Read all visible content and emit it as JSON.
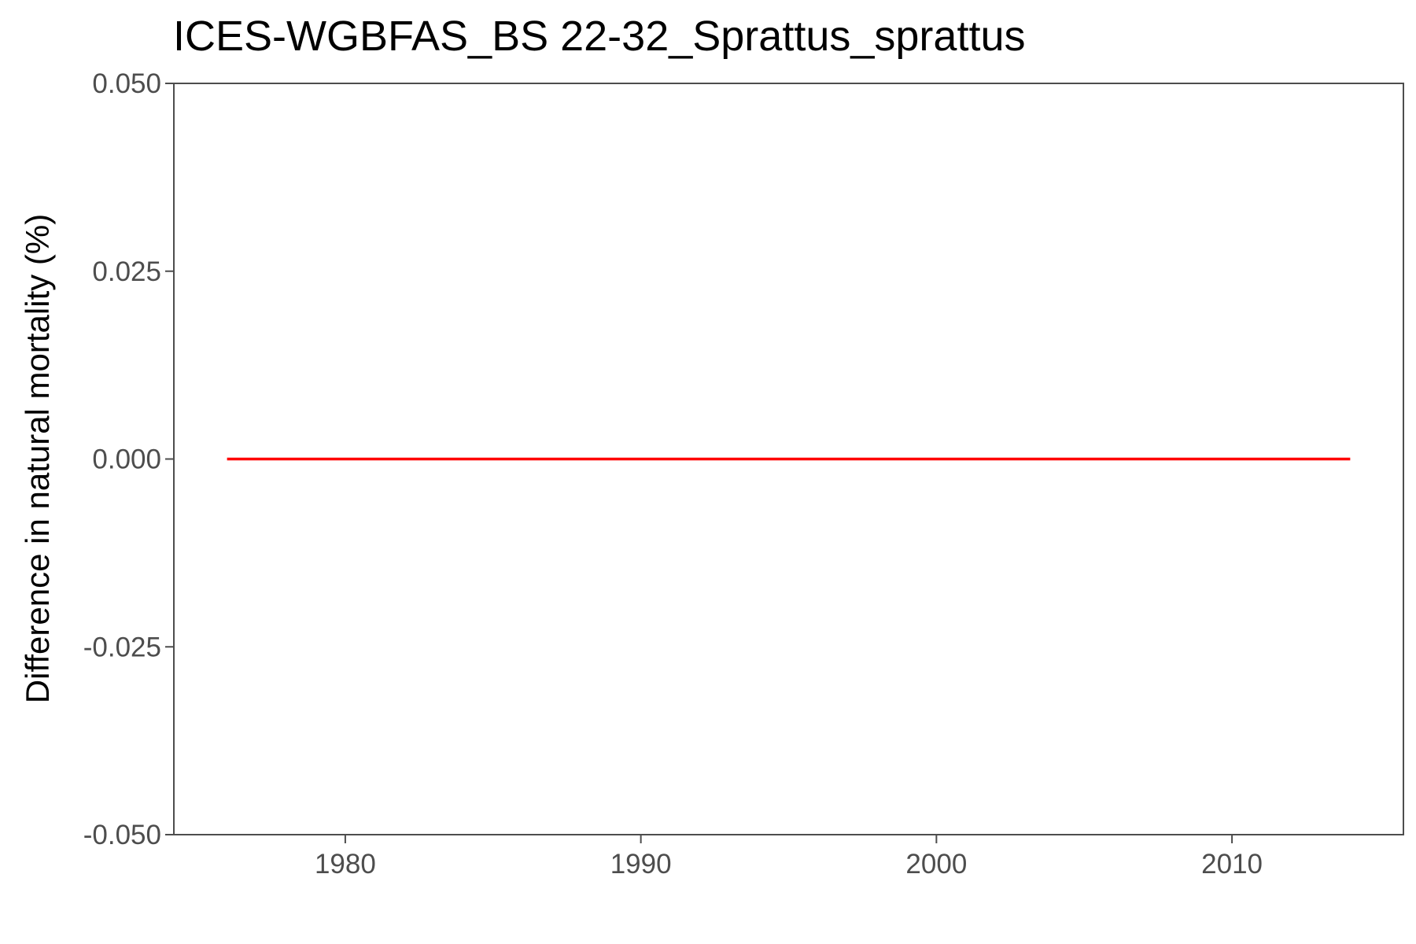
{
  "chart_data": {
    "type": "line",
    "title": "ICES-WGBFAS_BS 22-32_Sprattus_sprattus",
    "xlabel": "",
    "ylabel": "Difference in natural mortality (%)",
    "xlim": [
      1974.2,
      2015.8
    ],
    "ylim": [
      -0.05,
      0.05
    ],
    "x_ticks": [
      1980,
      1990,
      2000,
      2010
    ],
    "x_tick_labels": [
      "1980",
      "1990",
      "2000",
      "2010"
    ],
    "y_ticks": [
      -0.05,
      -0.025,
      0,
      0.025,
      0.05
    ],
    "y_tick_labels": [
      "-0.050",
      "-0.025",
      "0.000",
      "0.025",
      "0.050"
    ],
    "grid": false,
    "legend": "none",
    "series": [
      {
        "color": "#ff0000",
        "x": [
          1976,
          1977,
          1978,
          1979,
          1980,
          1981,
          1982,
          1983,
          1984,
          1985,
          1986,
          1987,
          1988,
          1989,
          1990,
          1991,
          1992,
          1993,
          1994,
          1995,
          1996,
          1997,
          1998,
          1999,
          2000,
          2001,
          2002,
          2003,
          2004,
          2005,
          2006,
          2007,
          2008,
          2009,
          2010,
          2011,
          2012,
          2013,
          2014
        ],
        "values": [
          0,
          0,
          0,
          0,
          0,
          0,
          0,
          0,
          0,
          0,
          0,
          0,
          0,
          0,
          0,
          0,
          0,
          0,
          0,
          0,
          0,
          0,
          0,
          0,
          0,
          0,
          0,
          0,
          0,
          0,
          0,
          0,
          0,
          0,
          0,
          0,
          0,
          0,
          0
        ]
      }
    ]
  }
}
